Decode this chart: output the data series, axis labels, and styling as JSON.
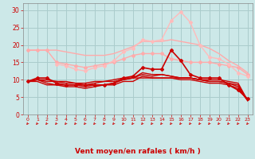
{
  "xlabel": "Vent moyen/en rafales ( km/h )",
  "ylim": [
    0,
    32
  ],
  "xlim": [
    -0.5,
    23.5
  ],
  "yticks": [
    0,
    5,
    10,
    15,
    20,
    25,
    30
  ],
  "xticks": [
    0,
    1,
    2,
    3,
    4,
    5,
    6,
    7,
    8,
    9,
    10,
    11,
    12,
    13,
    14,
    15,
    16,
    17,
    18,
    19,
    20,
    21,
    22,
    23
  ],
  "bg_color": "#cce8e8",
  "grid_color": "#aacccc",
  "tick_color": "#cc0000",
  "label_color": "#cc0000",
  "series": [
    {
      "x": [
        0,
        1,
        2,
        3,
        4,
        5,
        6,
        7,
        8,
        9,
        10,
        11,
        12,
        13,
        14,
        15,
        16,
        17,
        18,
        19,
        20,
        21,
        22,
        23
      ],
      "y": [
        18.5,
        18.5,
        18.5,
        18.5,
        18.0,
        17.5,
        17.0,
        17.0,
        17.0,
        17.5,
        18.5,
        19.5,
        21.0,
        21.0,
        21.0,
        21.5,
        21.0,
        20.5,
        20.0,
        19.0,
        17.5,
        15.5,
        14.0,
        12.0
      ],
      "color": "#ffaaaa",
      "lw": 1.0,
      "marker": null,
      "zorder": 2
    },
    {
      "x": [
        0,
        1,
        2,
        3,
        4,
        5,
        6,
        7,
        8,
        9,
        10,
        11,
        12,
        13,
        14,
        15,
        16,
        17,
        18,
        19,
        20,
        21,
        22,
        23
      ],
      "y": [
        18.5,
        18.5,
        18.5,
        15.0,
        14.5,
        14.0,
        13.5,
        14.0,
        14.5,
        15.0,
        16.0,
        17.0,
        17.5,
        17.5,
        17.5,
        16.0,
        15.5,
        15.0,
        15.0,
        15.0,
        14.5,
        14.0,
        13.5,
        11.5
      ],
      "color": "#ffaaaa",
      "lw": 1.0,
      "marker": "D",
      "ms": 2.0,
      "zorder": 2
    },
    {
      "x": [
        3,
        4,
        5,
        6,
        7,
        8,
        9,
        10,
        11,
        12,
        13,
        14,
        15,
        16,
        17,
        18,
        19,
        20,
        21,
        22,
        23
      ],
      "y": [
        14.5,
        14.0,
        13.0,
        12.5,
        13.5,
        14.0,
        15.5,
        18.0,
        19.0,
        21.5,
        21.0,
        21.5,
        27.0,
        29.5,
        26.5,
        20.0,
        16.5,
        16.0,
        14.5,
        12.0,
        11.0
      ],
      "color": "#ffbbbb",
      "lw": 1.0,
      "marker": "D",
      "ms": 2.0,
      "zorder": 2
    },
    {
      "x": [
        0,
        1,
        2,
        3,
        4,
        5,
        6,
        7,
        8,
        9,
        10,
        11,
        12,
        13,
        14,
        15,
        16,
        17,
        18,
        19,
        20,
        21,
        22,
        23
      ],
      "y": [
        9.5,
        10.5,
        10.5,
        9.0,
        8.5,
        8.5,
        8.5,
        8.5,
        8.5,
        9.0,
        10.5,
        11.0,
        13.5,
        13.0,
        13.0,
        18.5,
        15.5,
        11.5,
        10.5,
        10.5,
        10.5,
        8.5,
        7.0,
        4.5
      ],
      "color": "#cc0000",
      "lw": 1.2,
      "marker": "D",
      "ms": 2.0,
      "zorder": 4
    },
    {
      "x": [
        0,
        1,
        2,
        3,
        4,
        5,
        6,
        7,
        8,
        9,
        10,
        11,
        12,
        13,
        14,
        15,
        16,
        17,
        18,
        19,
        20,
        21,
        22,
        23
      ],
      "y": [
        9.5,
        10.0,
        10.0,
        9.5,
        9.0,
        9.0,
        9.0,
        9.5,
        9.5,
        9.5,
        10.0,
        10.5,
        10.5,
        10.5,
        10.5,
        10.5,
        10.5,
        10.5,
        10.0,
        10.0,
        10.0,
        9.5,
        9.0,
        4.0
      ],
      "color": "#cc0000",
      "lw": 1.0,
      "marker": null,
      "zorder": 3
    },
    {
      "x": [
        0,
        1,
        2,
        3,
        4,
        5,
        6,
        7,
        8,
        9,
        10,
        11,
        12,
        13,
        14,
        15,
        16,
        17,
        18,
        19,
        20,
        21,
        22,
        23
      ],
      "y": [
        9.5,
        10.0,
        9.5,
        9.5,
        9.5,
        9.0,
        8.5,
        9.0,
        9.5,
        10.0,
        10.5,
        10.5,
        11.5,
        11.0,
        11.5,
        11.0,
        10.5,
        10.5,
        10.0,
        9.5,
        9.5,
        9.0,
        8.5,
        4.0
      ],
      "color": "#cc0000",
      "lw": 1.0,
      "marker": null,
      "zorder": 3
    },
    {
      "x": [
        0,
        1,
        2,
        3,
        4,
        5,
        6,
        7,
        8,
        9,
        10,
        11,
        12,
        13,
        14,
        15,
        16,
        17,
        18,
        19,
        20,
        21,
        22,
        23
      ],
      "y": [
        9.5,
        10.0,
        9.0,
        8.5,
        8.5,
        8.5,
        8.0,
        8.5,
        8.5,
        9.0,
        10.0,
        10.5,
        12.0,
        11.5,
        11.5,
        11.0,
        10.5,
        10.5,
        10.0,
        9.5,
        9.5,
        9.0,
        8.0,
        4.0
      ],
      "color": "#cc0000",
      "lw": 1.0,
      "marker": null,
      "zorder": 3
    },
    {
      "x": [
        0,
        1,
        2,
        3,
        4,
        5,
        6,
        7,
        8,
        9,
        10,
        11,
        12,
        13,
        14,
        15,
        16,
        17,
        18,
        19,
        20,
        21,
        22,
        23
      ],
      "y": [
        9.5,
        9.5,
        8.5,
        8.5,
        8.0,
        8.0,
        7.5,
        8.0,
        8.5,
        8.5,
        9.5,
        9.5,
        11.0,
        10.5,
        10.5,
        10.5,
        10.0,
        10.0,
        9.5,
        9.0,
        9.0,
        8.5,
        7.5,
        4.0
      ],
      "color": "#cc0000",
      "lw": 1.0,
      "marker": null,
      "zorder": 3
    }
  ],
  "arrow_color": "#cc0000",
  "ytick_labels": [
    "0",
    "5",
    "10",
    "15",
    "20",
    "25",
    "30"
  ],
  "xtick_labels": [
    "0",
    "1",
    "2",
    "3",
    "4",
    "5",
    "6",
    "7",
    "8",
    "9",
    "10",
    "11",
    "12",
    "13",
    "14",
    "15",
    "16",
    "17",
    "18",
    "19",
    "20",
    "21",
    "22",
    "23"
  ]
}
